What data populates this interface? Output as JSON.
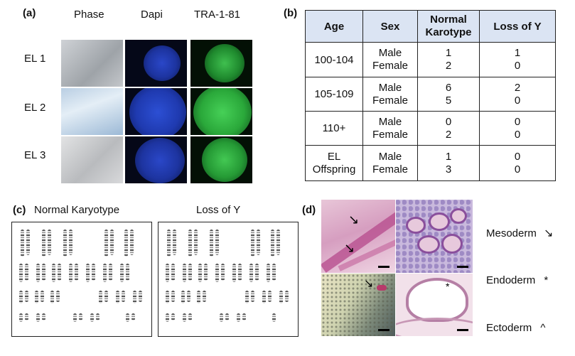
{
  "panel_a": {
    "label": "(a)",
    "columns": [
      "Phase",
      "Dapi",
      "TRA-1-81"
    ],
    "rows": [
      "EL 1",
      "EL 2",
      "EL 3"
    ]
  },
  "panel_b": {
    "label": "(b)",
    "headers": [
      "Age",
      "Sex",
      "Normal Karotype",
      "Loss of Y"
    ],
    "groups": [
      {
        "age": "100-104",
        "rows": [
          {
            "sex": "Male",
            "normal": "1",
            "loss": "1"
          },
          {
            "sex": "Female",
            "normal": "2",
            "loss": "0"
          }
        ]
      },
      {
        "age": "105-109",
        "rows": [
          {
            "sex": "Male",
            "normal": "6",
            "loss": "2"
          },
          {
            "sex": "Female",
            "normal": "5",
            "loss": "0"
          }
        ]
      },
      {
        "age": "110+",
        "rows": [
          {
            "sex": "Male",
            "normal": "0",
            "loss": "0"
          },
          {
            "sex": "Female",
            "normal": "2",
            "loss": "0"
          }
        ]
      },
      {
        "age": "EL Offspring",
        "rows": [
          {
            "sex": "Male",
            "normal": "1",
            "loss": "0"
          },
          {
            "sex": "Female",
            "normal": "3",
            "loss": "0"
          }
        ]
      }
    ]
  },
  "panel_c": {
    "label": "(c)",
    "left_title": "Normal Karyotype",
    "right_title": "Loss of Y"
  },
  "panel_d": {
    "label": "(d)",
    "legend": [
      {
        "text": "Mesoderm",
        "symbol": "arrow"
      },
      {
        "text": "Endoderm",
        "symbol": "*"
      },
      {
        "text": "Ectoderm",
        "symbol": "^"
      }
    ]
  }
}
